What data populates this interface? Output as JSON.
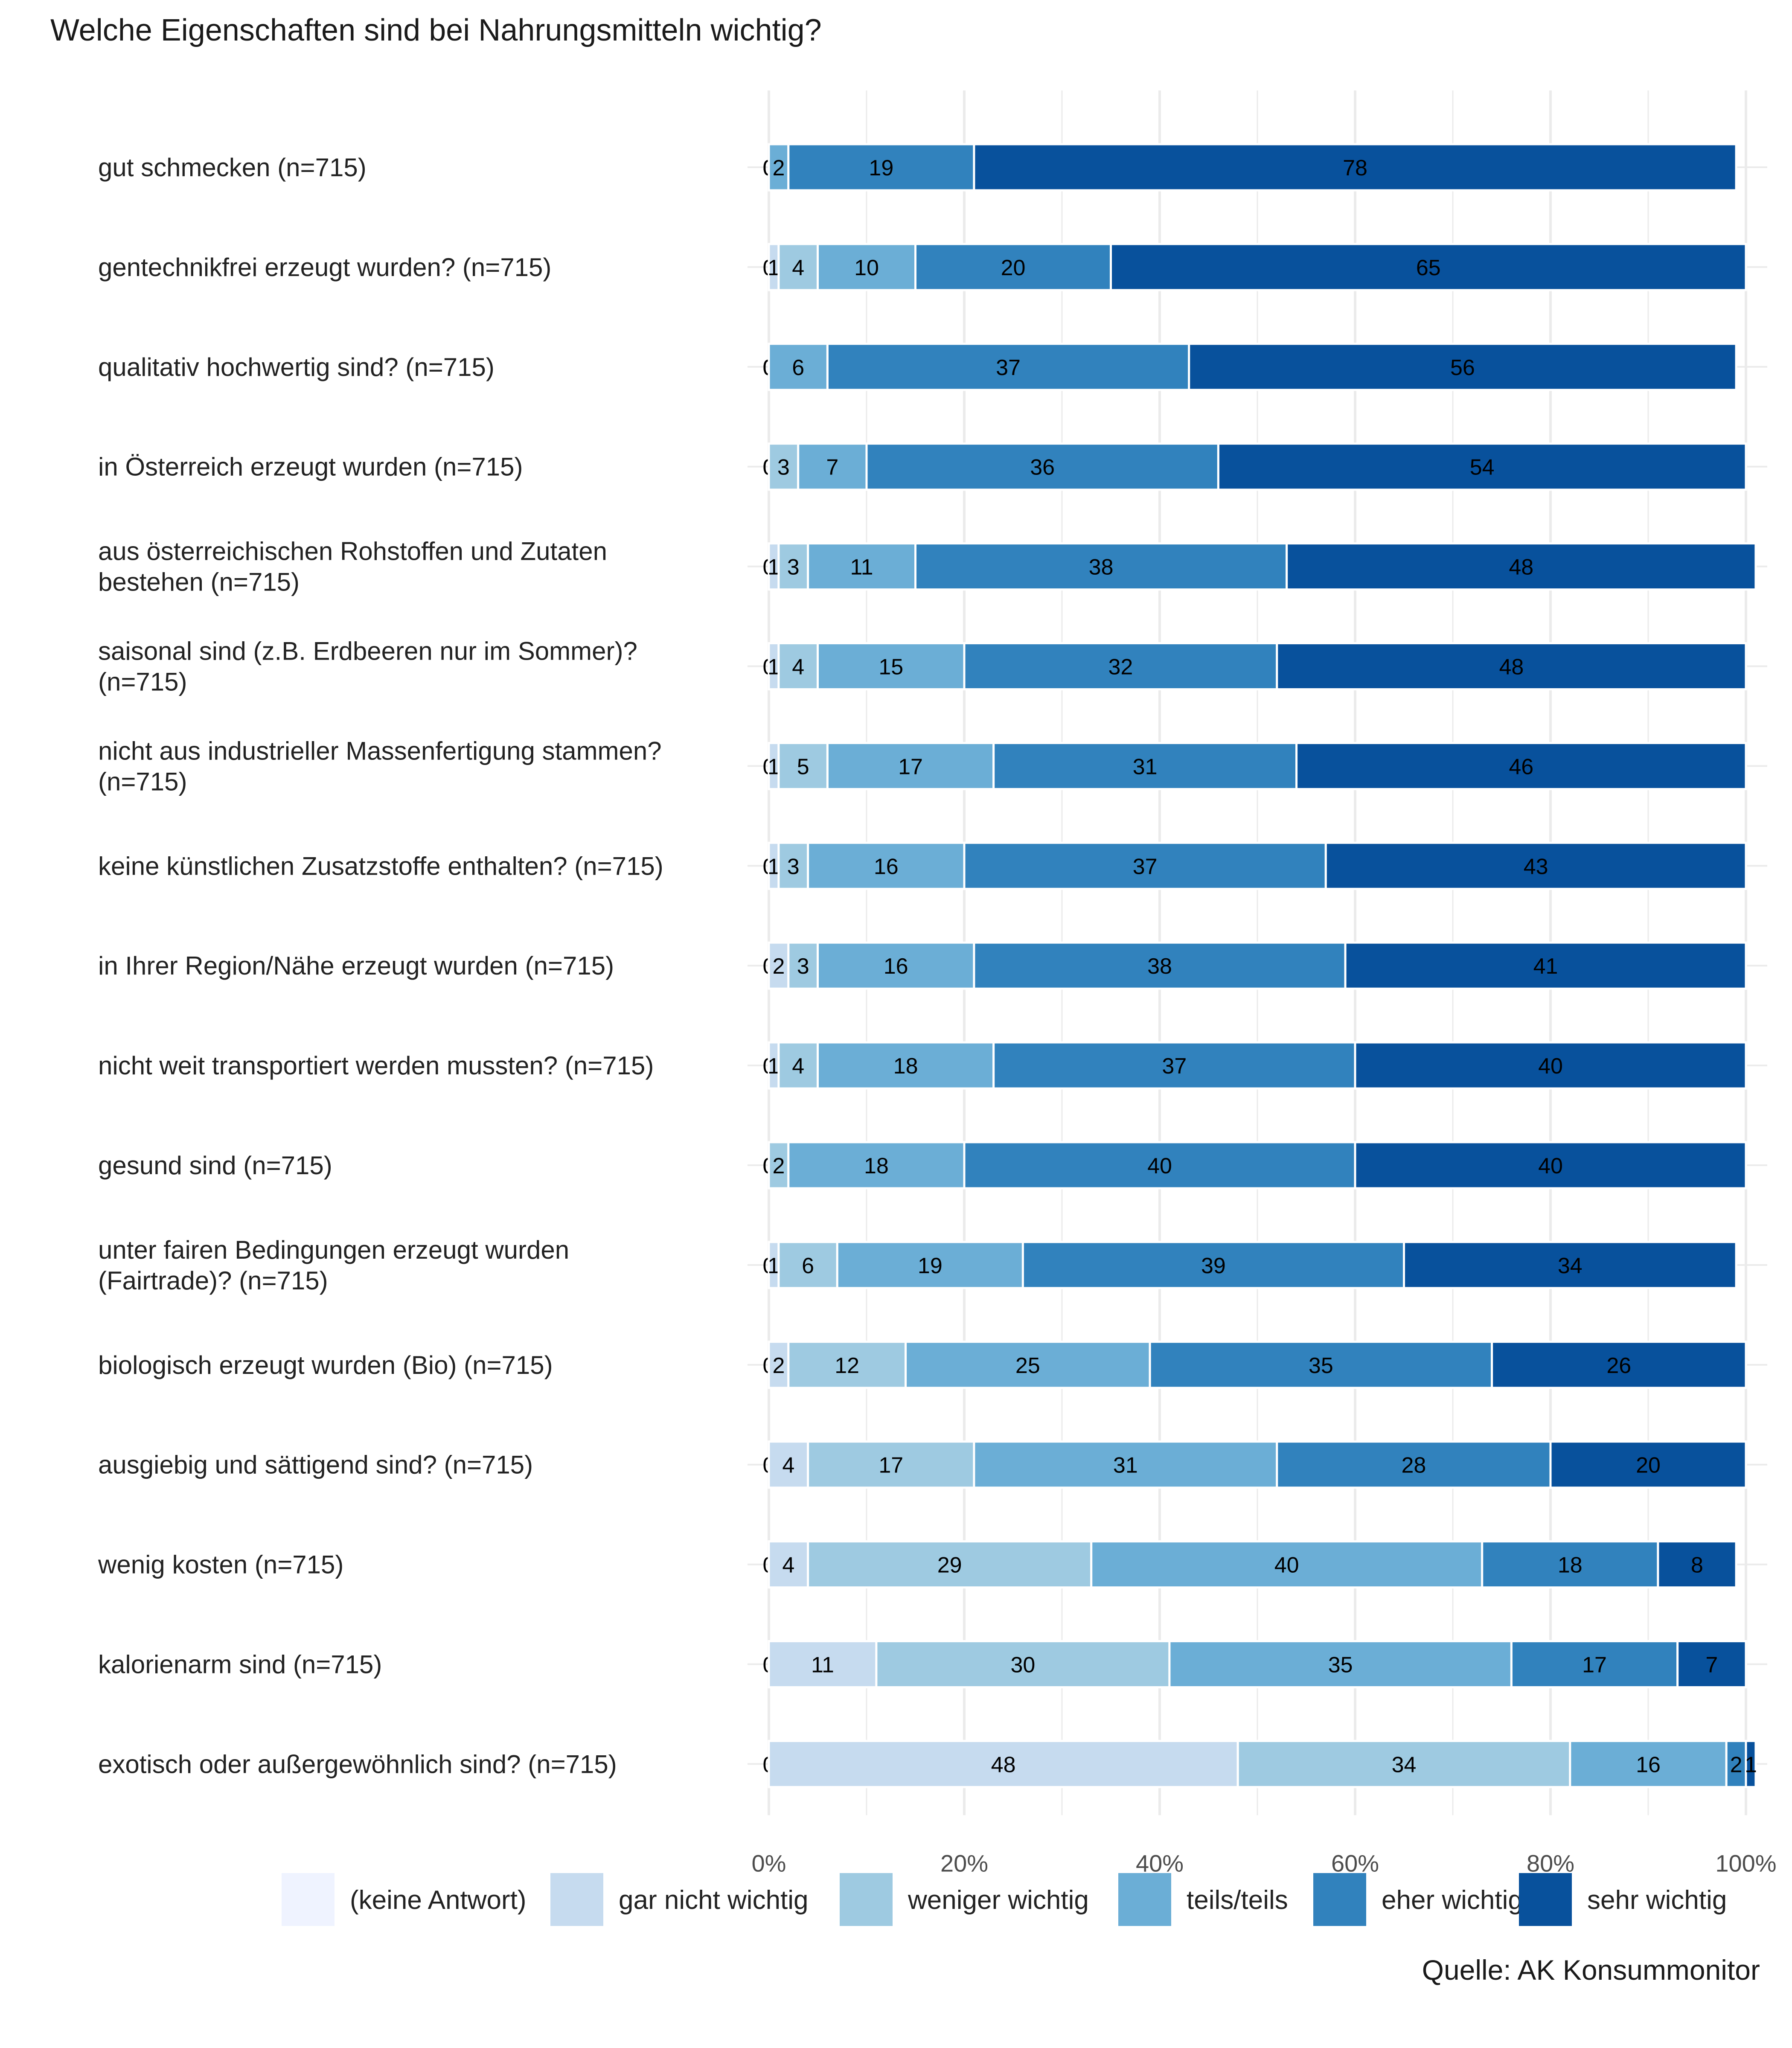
{
  "chart_data": {
    "type": "bar",
    "orientation": "horizontal",
    "stacked": true,
    "normalized": true,
    "title": "Welche Eigenschaften sind bei Nahrungsmitteln wichtig?",
    "source": "Quelle: AK Konsummonitor",
    "xlim": [
      0,
      100
    ],
    "x_ticks": [
      "0%",
      "20%",
      "40%",
      "60%",
      "80%",
      "100%"
    ],
    "grid": true,
    "legend_position": "bottom",
    "series": [
      {
        "name": "(keine Antwort)",
        "color": "#eff3ff"
      },
      {
        "name": "gar nicht wichtig",
        "color": "#c6dbef"
      },
      {
        "name": "weniger wichtig",
        "color": "#9ecae1"
      },
      {
        "name": "teils/teils",
        "color": "#6baed6"
      },
      {
        "name": "eher wichtig",
        "color": "#3182bd"
      },
      {
        "name": "sehr wichtig",
        "color": "#08519c"
      }
    ],
    "categories": [
      {
        "label": [
          "gut schmecken (n=715)"
        ],
        "values": [
          0,
          0,
          0,
          2,
          19,
          78
        ]
      },
      {
        "label": [
          "gentechnikfrei erzeugt wurden? (n=715)"
        ],
        "values": [
          0,
          1,
          4,
          10,
          20,
          65
        ]
      },
      {
        "label": [
          "qualitativ hochwertig sind? (n=715)"
        ],
        "values": [
          0,
          0,
          0,
          6,
          37,
          56
        ]
      },
      {
        "label": [
          "in Österreich erzeugt wurden (n=715)"
        ],
        "values": [
          0,
          0,
          3,
          7,
          36,
          54
        ]
      },
      {
        "label": [
          "aus österreichischen Rohstoffen und Zutaten",
          "bestehen (n=715)"
        ],
        "values": [
          0,
          1,
          3,
          11,
          38,
          48
        ]
      },
      {
        "label": [
          "saisonal sind (z.B. Erdbeeren nur im Sommer)?",
          "(n=715)"
        ],
        "values": [
          0,
          1,
          4,
          15,
          32,
          48
        ]
      },
      {
        "label": [
          "nicht aus industrieller Massenfertigung stammen?",
          "(n=715)"
        ],
        "values": [
          0,
          1,
          5,
          17,
          31,
          46
        ]
      },
      {
        "label": [
          "keine künstlichen Zusatzstoffe enthalten? (n=715)"
        ],
        "values": [
          0,
          1,
          3,
          16,
          37,
          43
        ]
      },
      {
        "label": [
          "in Ihrer Region/Nähe erzeugt wurden (n=715)"
        ],
        "values": [
          0,
          2,
          3,
          16,
          38,
          41
        ]
      },
      {
        "label": [
          "nicht weit transportiert werden mussten? (n=715)"
        ],
        "values": [
          0,
          1,
          4,
          18,
          37,
          40
        ]
      },
      {
        "label": [
          "gesund sind (n=715)"
        ],
        "values": [
          0,
          0,
          2,
          18,
          40,
          40
        ]
      },
      {
        "label": [
          "unter fairen Bedingungen erzeugt wurden",
          "(Fairtrade)? (n=715)"
        ],
        "values": [
          0,
          1,
          6,
          19,
          39,
          34
        ]
      },
      {
        "label": [
          "biologisch erzeugt wurden (Bio) (n=715)"
        ],
        "values": [
          0,
          2,
          12,
          25,
          35,
          26
        ]
      },
      {
        "label": [
          "ausgiebig und sättigend sind? (n=715)"
        ],
        "values": [
          0,
          4,
          17,
          31,
          28,
          20
        ]
      },
      {
        "label": [
          "wenig kosten (n=715)"
        ],
        "values": [
          0,
          4,
          29,
          40,
          18,
          8
        ]
      },
      {
        "label": [
          "kalorienarm sind (n=715)"
        ],
        "values": [
          0,
          11,
          30,
          35,
          17,
          7
        ]
      },
      {
        "label": [
          "exotisch oder außergewöhnlich sind? (n=715)"
        ],
        "values": [
          0,
          48,
          34,
          16,
          2,
          1
        ]
      }
    ]
  }
}
